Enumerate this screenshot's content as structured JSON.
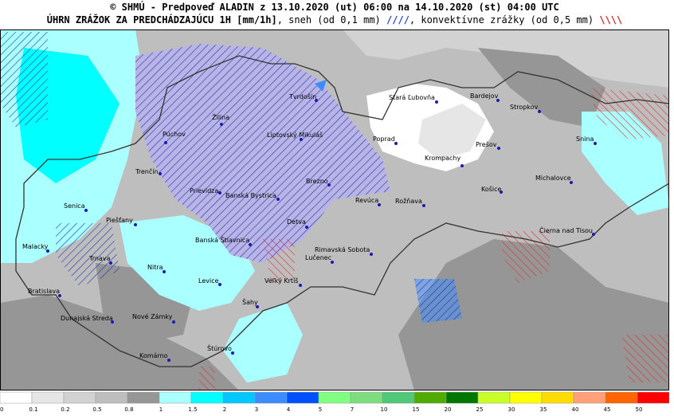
{
  "header": {
    "title": "© SHMÚ - Predpoveď ALADIN z 13.10.2020 (ut) 06:00 na 14.10.2020 (st) 04:00 UTC",
    "subtitle_main": "ÚHRN ZRÁŽOK ZA PREDCHÁDZAJÚCU 1H [mm/1h]",
    "subtitle_snow": ", sneh (od 0,1 mm) ",
    "snow_symbol": "////",
    "subtitle_convective": ", konvektívne zrážky (od 0,5 mm) ",
    "convective_symbol": "\\\\\\\\"
  },
  "map": {
    "cities": [
      "Tvrdošín",
      "Žilina",
      "Púchov",
      "Liptovský Mikuláš",
      "Stará Ľubovňa",
      "Bardejov",
      "Stropkov",
      "Poprad",
      "Prešov",
      "Snina",
      "Krompachy",
      "Trenčín",
      "Michalovce",
      "Prievidza",
      "Banská Bystrica",
      "Brezno",
      "Košice",
      "Revúca",
      "Rožňava",
      "Senica",
      "Piešťany",
      "Detva",
      "Čierna nad Tisou",
      "Banská Štiavnica",
      "Malacky",
      "Rimavská Sobota",
      "Trnava",
      "Lučenec",
      "Nitra",
      "Levice",
      "Veľký Krtíš",
      "Bratislava",
      "Šahy",
      "Dunajská Streda",
      "Nové Zámky",
      "Štúrovo",
      "Komárno"
    ]
  },
  "legend": {
    "items": [
      {
        "label": "0",
        "color": "#ffffff"
      },
      {
        "label": "0.1",
        "color": "#e6e6e6"
      },
      {
        "label": "0.2",
        "color": "#d2d2d2"
      },
      {
        "label": "0.5",
        "color": "#bebebe"
      },
      {
        "label": "0.8",
        "color": "#969696"
      },
      {
        "label": "1",
        "color": "#aaffff"
      },
      {
        "label": "1.5",
        "color": "#00ffff"
      },
      {
        "label": "2",
        "color": "#00c8ff"
      },
      {
        "label": "3",
        "color": "#3c8cff"
      },
      {
        "label": "4",
        "color": "#0050ff"
      },
      {
        "label": "5",
        "color": "#80ff80"
      },
      {
        "label": "7",
        "color": "#7ddc7d"
      },
      {
        "label": "10",
        "color": "#50c878"
      },
      {
        "label": "15",
        "color": "#50aa00"
      },
      {
        "label": "20",
        "color": "#007800"
      },
      {
        "label": "25",
        "color": "#c8ff28"
      },
      {
        "label": "30",
        "color": "#ffff00"
      },
      {
        "label": "35",
        "color": "#ffdc00"
      },
      {
        "label": "40",
        "color": "#ffa07a"
      },
      {
        "label": "45",
        "color": "#ff6400"
      },
      {
        "label": "50",
        "color": "#ff0000"
      }
    ]
  }
}
